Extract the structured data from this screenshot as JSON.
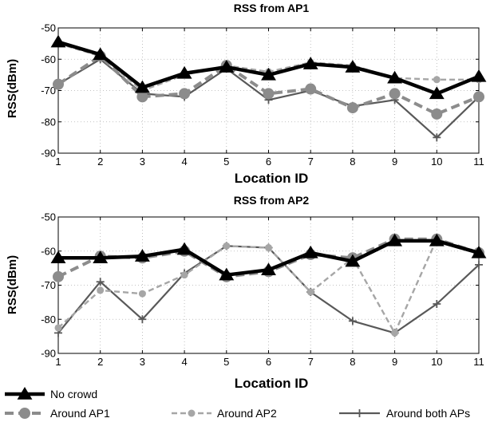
{
  "chart_data": [
    {
      "type": "line",
      "title": "RSS from AP1",
      "xlabel": "Location ID",
      "ylabel": "RSS(dBm)",
      "x": [
        1,
        2,
        3,
        4,
        5,
        6,
        7,
        8,
        9,
        10,
        11
      ],
      "xlim": [
        1,
        11
      ],
      "ylim": [
        -90,
        -50
      ],
      "yticks": [
        -90,
        -80,
        -70,
        -60,
        -50
      ],
      "grid": true,
      "series": [
        {
          "name": "Around both APs",
          "values": [
            -68,
            -60,
            -71,
            -72,
            -63,
            -73,
            -70,
            -75,
            -73,
            -85,
            -72
          ]
        },
        {
          "name": "Around AP2",
          "values": [
            -55,
            -59,
            -70,
            -65,
            -62,
            -64,
            -61,
            -62,
            -66,
            -66.5,
            -66.5
          ]
        },
        {
          "name": "Around AP1",
          "values": [
            -68,
            -59,
            -72,
            -71,
            -62,
            -71,
            -69.5,
            -75.5,
            -71,
            -77.5,
            -72
          ]
        },
        {
          "name": "No crowd",
          "values": [
            -54.5,
            -58.5,
            -69,
            -64.5,
            -62.5,
            -65,
            -61.5,
            -62.5,
            -66,
            -71,
            -65.5
          ]
        }
      ]
    },
    {
      "type": "line",
      "title": "RSS from AP2",
      "xlabel": "Location ID",
      "ylabel": "RSS(dBm)",
      "x": [
        1,
        2,
        3,
        4,
        5,
        6,
        7,
        8,
        9,
        10,
        11
      ],
      "xlim": [
        1,
        11
      ],
      "ylim": [
        -90,
        -50
      ],
      "yticks": [
        -90,
        -80,
        -70,
        -60,
        -50
      ],
      "grid": true,
      "series": [
        {
          "name": "Around both APs",
          "values": [
            -84,
            -69,
            -80,
            -66.5,
            -58.5,
            -59,
            -72,
            -80.5,
            -84,
            -75.5,
            -64
          ]
        },
        {
          "name": "Around AP2",
          "values": [
            -82.5,
            -71.5,
            -72.5,
            -67,
            -58.5,
            -59,
            -72,
            -62,
            -84,
            -56.5,
            -60.5
          ]
        },
        {
          "name": "Around AP1",
          "values": [
            -67.5,
            -61.5,
            -62,
            -60,
            -67.5,
            -66,
            -61,
            -62,
            -56.5,
            -56.5,
            -60.5
          ]
        },
        {
          "name": "No crowd",
          "values": [
            -62,
            -62,
            -61.5,
            -59.5,
            -67,
            -65.5,
            -60.5,
            -63,
            -57,
            -57,
            -60.5
          ]
        }
      ]
    }
  ],
  "legend": {
    "placement": "bottom",
    "items": [
      {
        "name": "No crowd",
        "color": "#000000"
      },
      {
        "name": "Around AP1",
        "color": "#8c8c8c"
      },
      {
        "name": "Around AP2",
        "color": "#a6a6a6"
      },
      {
        "name": "Around both APs",
        "color": "#595959"
      }
    ]
  }
}
